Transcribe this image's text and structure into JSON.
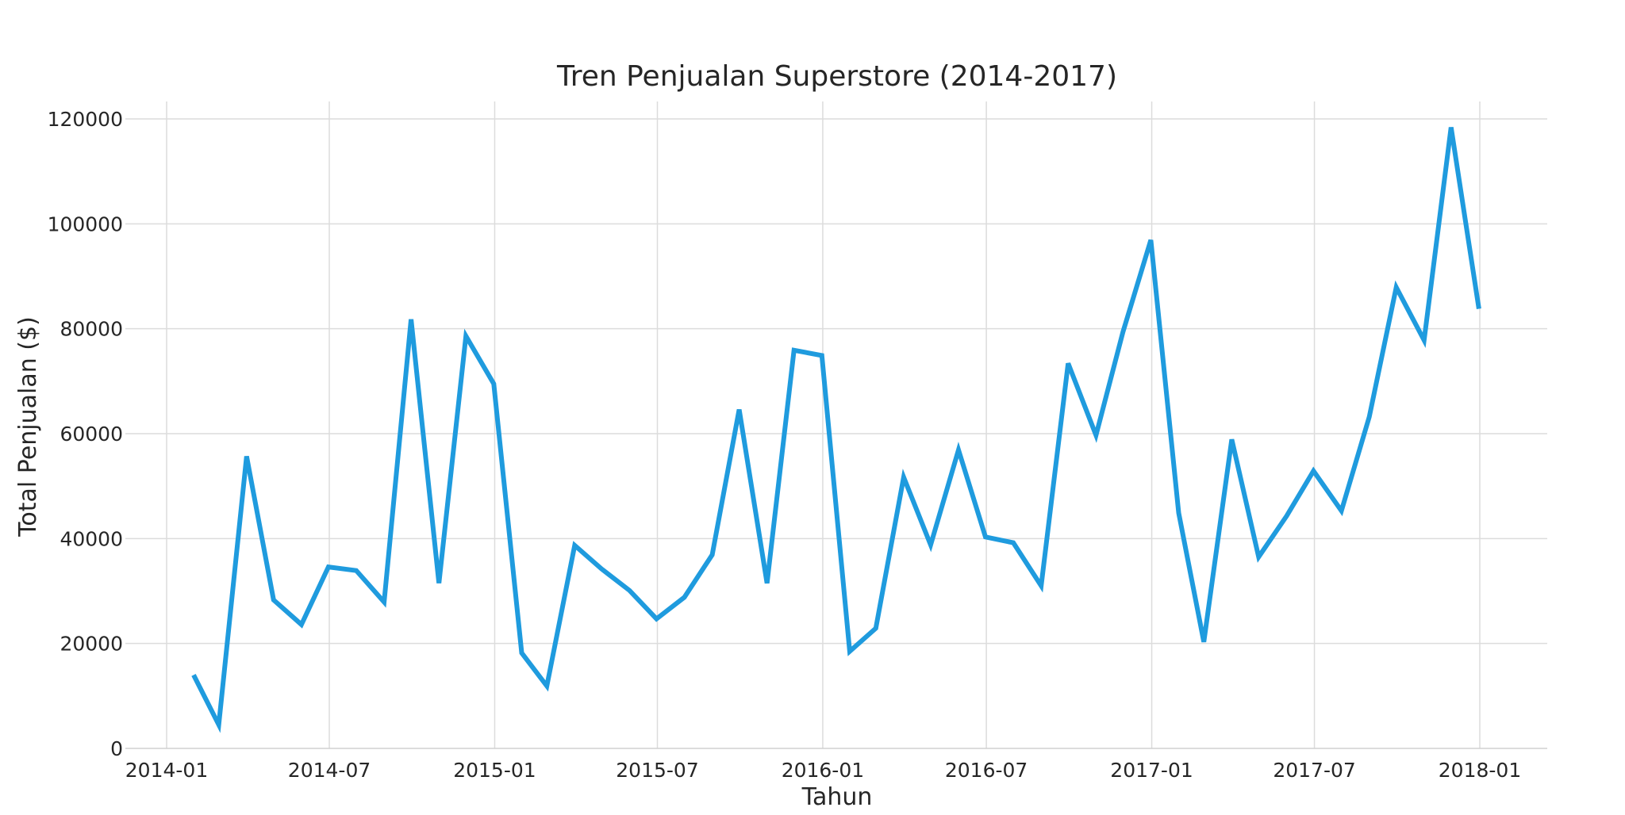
{
  "chart_data": {
    "type": "line",
    "title": "Tren Penjualan Superstore (2014-2017)",
    "xlabel": "Tahun",
    "ylabel": "Total Penjualan ($)",
    "grid": true,
    "line_color": "#1f9bde",
    "xlim": [
      "2014-01",
      "2018-01"
    ],
    "ylim": [
      0,
      122000
    ],
    "x_ticks": [
      "2014-01",
      "2014-07",
      "2015-01",
      "2015-07",
      "2016-01",
      "2016-07",
      "2017-01",
      "2017-07",
      "2018-01"
    ],
    "y_ticks": [
      0,
      20000,
      40000,
      60000,
      80000,
      100000,
      120000
    ],
    "series": [
      {
        "x": [
          "2014-01-31",
          "2014-02-28",
          "2014-03-31",
          "2014-04-30",
          "2014-05-31",
          "2014-06-30",
          "2014-07-31",
          "2014-08-31",
          "2014-09-30",
          "2014-10-31",
          "2014-11-30",
          "2014-12-31",
          "2015-01-31",
          "2015-02-28",
          "2015-03-31",
          "2015-04-30",
          "2015-05-31",
          "2015-06-30",
          "2015-07-31",
          "2015-08-31",
          "2015-09-30",
          "2015-10-31",
          "2015-11-30",
          "2015-12-31",
          "2016-01-31",
          "2016-02-29",
          "2016-03-31",
          "2016-04-30",
          "2016-05-31",
          "2016-06-30",
          "2016-07-31",
          "2016-08-31",
          "2016-09-30",
          "2016-10-31",
          "2016-11-30",
          "2016-12-31",
          "2017-01-31",
          "2017-02-28",
          "2017-03-31",
          "2017-04-30",
          "2017-05-31",
          "2017-06-30",
          "2017-07-31",
          "2017-08-31",
          "2017-09-30",
          "2017-10-31",
          "2017-11-30",
          "2017-12-31"
        ],
        "values": [
          14000,
          4500,
          55700,
          28300,
          23600,
          34600,
          33900,
          27900,
          81800,
          31500,
          78600,
          69500,
          18200,
          11900,
          38700,
          34200,
          30100,
          24700,
          28800,
          36900,
          64600,
          31500,
          75900,
          74900,
          18500,
          22900,
          51700,
          38800,
          56900,
          40300,
          39200,
          31000,
          73400,
          59700,
          79400,
          96900,
          44900,
          20300,
          58900,
          36500,
          44300,
          52900,
          45300,
          63200,
          87900,
          77800,
          118400,
          83800
        ]
      }
    ]
  }
}
